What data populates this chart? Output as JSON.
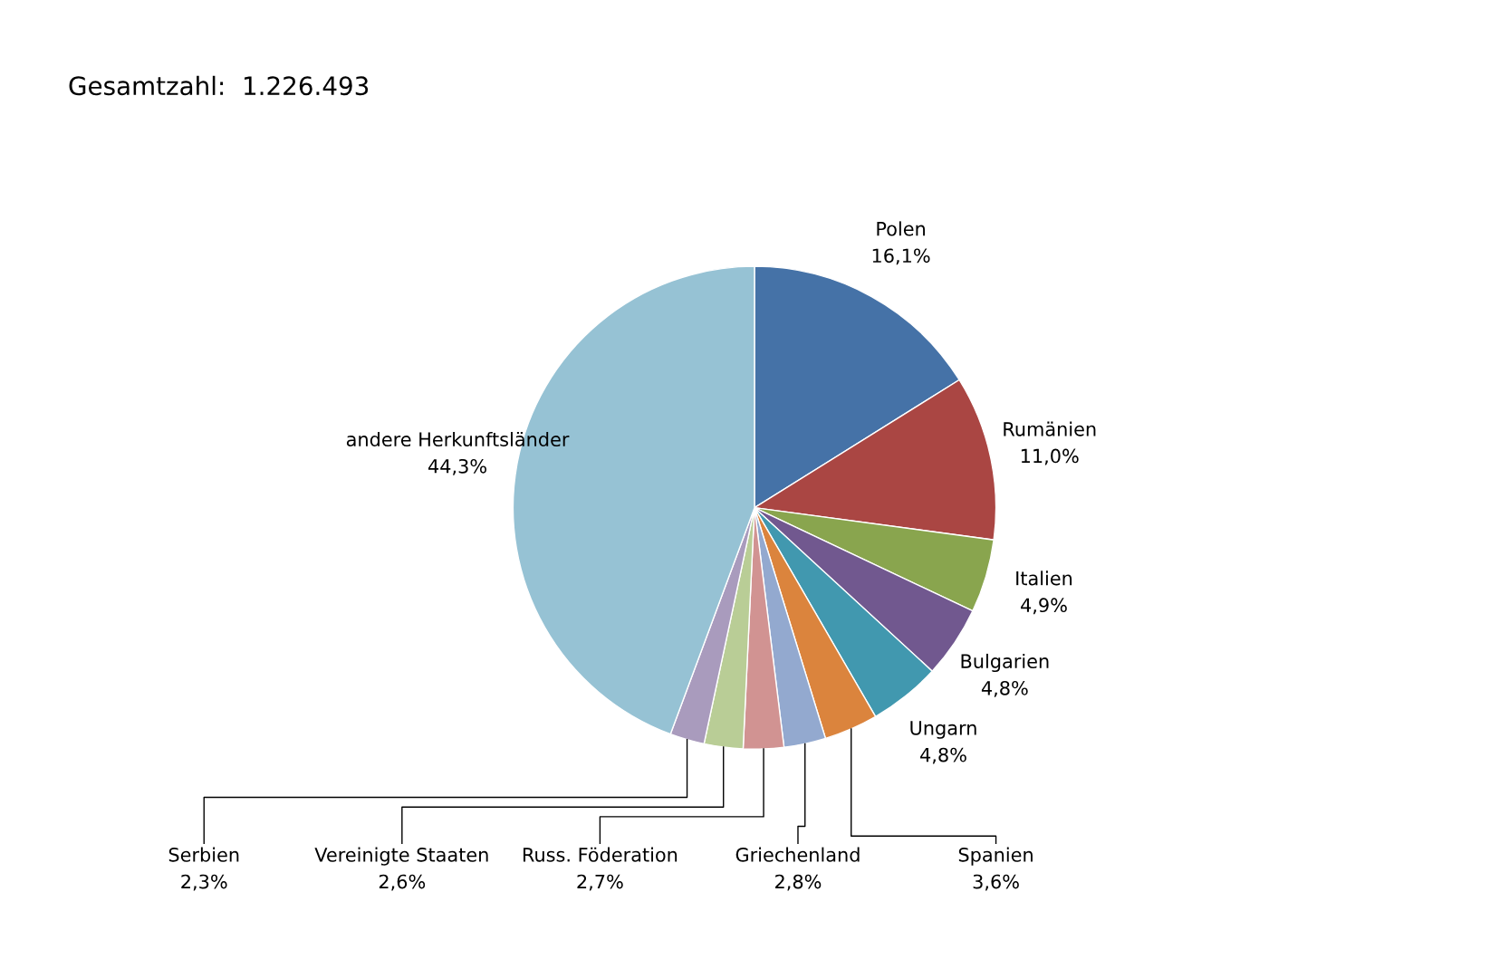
{
  "chart_data": {
    "type": "pie",
    "title": "Gesamtzahl:  1.226.493",
    "categories": [
      "Polen",
      "Rumänien",
      "Italien",
      "Bulgarien",
      "Ungarn",
      "Spanien",
      "Griechenland",
      "Russ. Föderation",
      "Vereinigte Staaten",
      "Serbien",
      "andere Herkunftsländer"
    ],
    "values": [
      16.1,
      11.0,
      4.9,
      4.8,
      4.8,
      3.6,
      2.8,
      2.7,
      2.6,
      2.3,
      44.3
    ],
    "value_labels": [
      "16,1%",
      "11,0%",
      "4,9%",
      "4,8%",
      "4,8%",
      "3,6%",
      "2,8%",
      "2,7%",
      "2,6%",
      "2,3%",
      "44,3%"
    ],
    "colors": [
      "#4572a7",
      "#aa4643",
      "#89a54e",
      "#71588f",
      "#4198af",
      "#db843d",
      "#93a9cf",
      "#d19392",
      "#b9cd96",
      "#a99bbd",
      "#96c2d4"
    ],
    "legend": false
  }
}
